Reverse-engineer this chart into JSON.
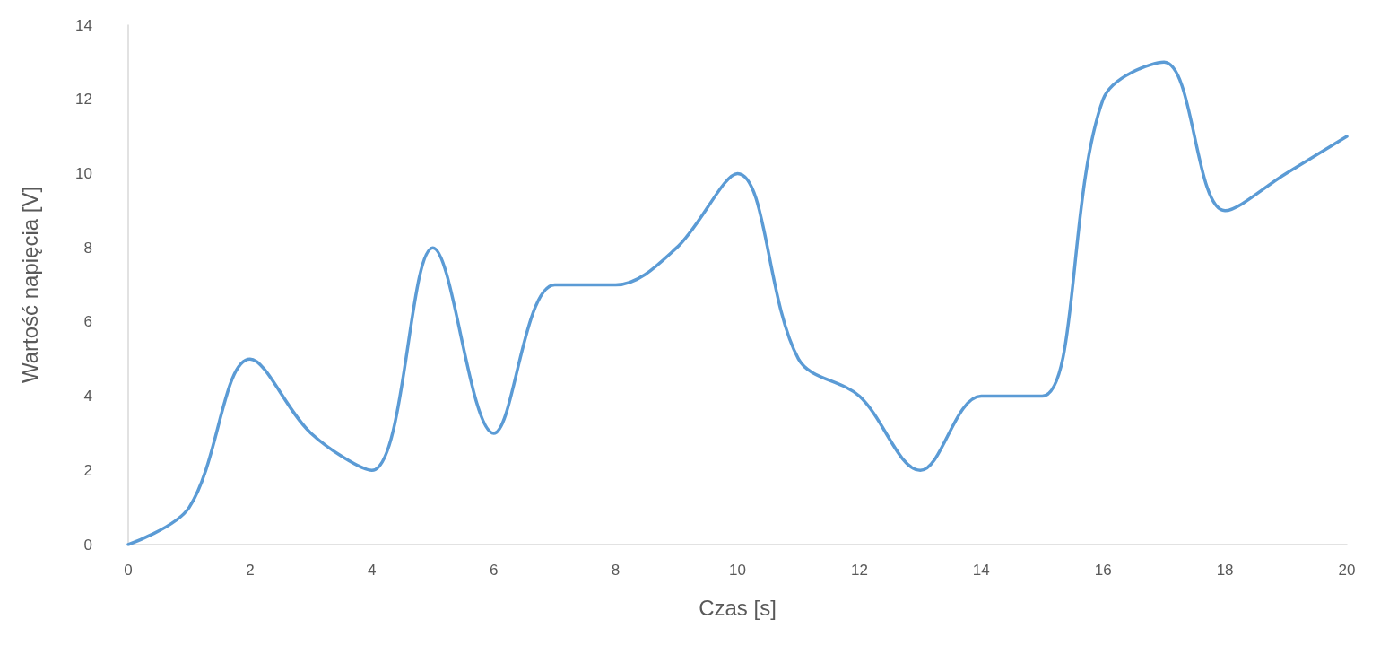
{
  "chart_data": {
    "type": "line",
    "xlabel": "Czas [s]",
    "ylabel": "Wartość napięcia [V]",
    "x": [
      0,
      1,
      2,
      3,
      4,
      5,
      6,
      7,
      8,
      9,
      10,
      11,
      12,
      13,
      14,
      15,
      16,
      17,
      18,
      19,
      20
    ],
    "series": [
      {
        "color": "#5b9bd5",
        "values": [
          0,
          1,
          5,
          3,
          2,
          8,
          3,
          7,
          7,
          8,
          10,
          5,
          4,
          2,
          4,
          4,
          12,
          13,
          9,
          10,
          11
        ]
      }
    ],
    "xlim": [
      0,
      20
    ],
    "xticks": [
      0,
      2,
      4,
      6,
      8,
      10,
      12,
      14,
      16,
      18,
      20
    ],
    "ylim": [
      0,
      14
    ],
    "yticks": [
      0,
      2,
      4,
      6,
      8,
      10,
      12,
      14
    ],
    "grid": false,
    "marker": "none",
    "line_style": "solid"
  }
}
